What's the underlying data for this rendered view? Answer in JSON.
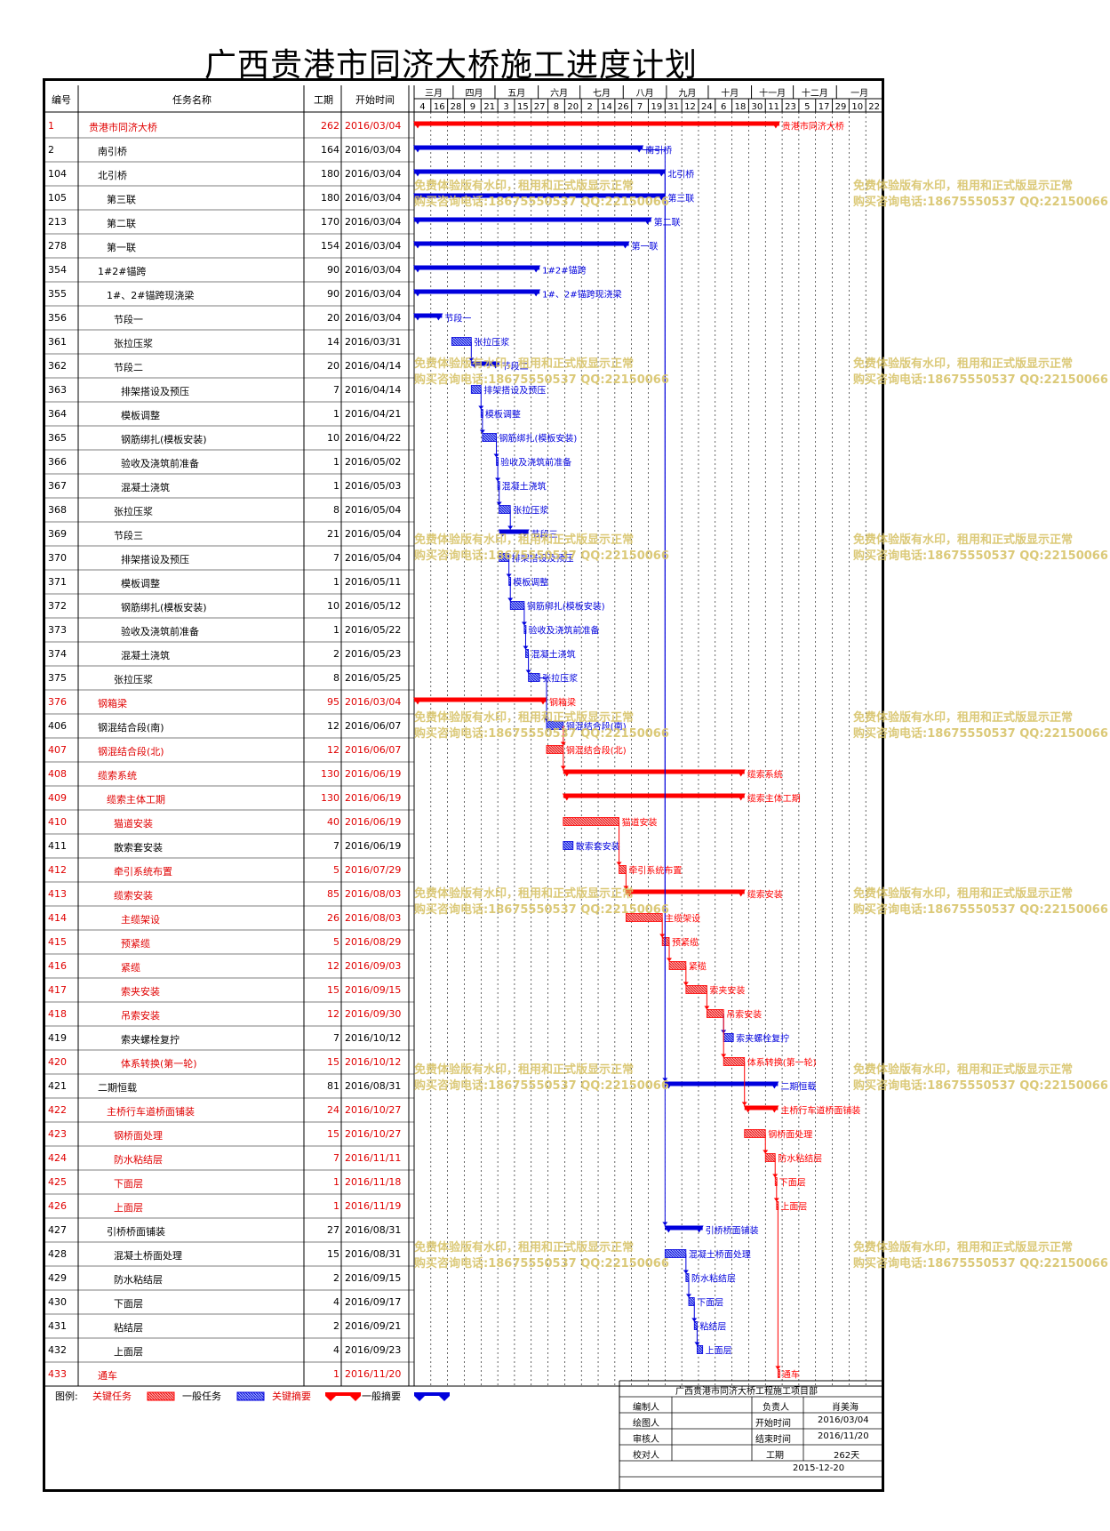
{
  "title": "广西贵港市同济大桥施工进度计划",
  "header": {
    "id": "编号",
    "name": "任务名称",
    "duration": "工期",
    "start": "开始时间"
  },
  "months": [
    "三月",
    "四月",
    "五月",
    "六月",
    "七月",
    "八月",
    "九月",
    "十月",
    "十一月",
    "十二月",
    "一月"
  ],
  "days": [
    "4",
    "16",
    "28",
    "9",
    "21",
    "3",
    "15",
    "27",
    "8",
    "20",
    "2",
    "14",
    "26",
    "7",
    "19",
    "31",
    "12",
    "24",
    "6",
    "18",
    "30",
    "11",
    "23",
    "5",
    "17",
    "29",
    "10",
    "22"
  ],
  "colors": {
    "critical": "#ff0000",
    "normal": "#0000dd",
    "watermark": "#d8c46a"
  },
  "tasks": [
    {
      "id": "1",
      "name": "贵港市同济大桥",
      "dur": "262",
      "start": "2016/03/04",
      "level": 0,
      "crit": true,
      "type": "summary",
      "s": 0,
      "d": 262
    },
    {
      "id": "2",
      "name": "南引桥",
      "dur": "164",
      "start": "2016/03/04",
      "level": 1,
      "crit": false,
      "type": "summary",
      "s": 0,
      "d": 164
    },
    {
      "id": "104",
      "name": "北引桥",
      "dur": "180",
      "start": "2016/03/04",
      "level": 1,
      "crit": false,
      "type": "summary",
      "s": 0,
      "d": 180
    },
    {
      "id": "105",
      "name": "第三联",
      "dur": "180",
      "start": "2016/03/04",
      "level": 2,
      "crit": false,
      "type": "summary",
      "s": 0,
      "d": 180
    },
    {
      "id": "213",
      "name": "第二联",
      "dur": "170",
      "start": "2016/03/04",
      "level": 2,
      "crit": false,
      "type": "summary",
      "s": 0,
      "d": 170
    },
    {
      "id": "278",
      "name": "第一联",
      "dur": "154",
      "start": "2016/03/04",
      "level": 2,
      "crit": false,
      "type": "summary",
      "s": 0,
      "d": 154
    },
    {
      "id": "354",
      "name": "1#2#锚跨",
      "dur": "90",
      "start": "2016/03/04",
      "level": 1,
      "crit": false,
      "type": "summary",
      "s": 0,
      "d": 90
    },
    {
      "id": "355",
      "name": "1#、2#锚跨现浇梁",
      "dur": "90",
      "start": "2016/03/04",
      "level": 2,
      "crit": false,
      "type": "summary",
      "s": 0,
      "d": 90
    },
    {
      "id": "356",
      "name": "节段一",
      "dur": "20",
      "start": "2016/03/04",
      "level": 3,
      "crit": false,
      "type": "summary",
      "s": 0,
      "d": 20
    },
    {
      "id": "361",
      "name": "张拉压浆",
      "dur": "14",
      "start": "2016/03/31",
      "level": 3,
      "crit": false,
      "type": "task",
      "s": 27,
      "d": 14
    },
    {
      "id": "362",
      "name": "节段二",
      "dur": "20",
      "start": "2016/04/14",
      "level": 3,
      "crit": false,
      "type": "summary",
      "s": 41,
      "d": 20
    },
    {
      "id": "363",
      "name": "排架搭设及预压",
      "dur": "7",
      "start": "2016/04/14",
      "level": 4,
      "crit": false,
      "type": "task",
      "s": 41,
      "d": 7
    },
    {
      "id": "364",
      "name": "模板调整",
      "dur": "1",
      "start": "2016/04/21",
      "level": 4,
      "crit": false,
      "type": "task",
      "s": 48,
      "d": 1
    },
    {
      "id": "365",
      "name": "钢筋绑扎(模板安装)",
      "dur": "10",
      "start": "2016/04/22",
      "level": 4,
      "crit": false,
      "type": "task",
      "s": 49,
      "d": 10
    },
    {
      "id": "366",
      "name": "验收及浇筑前准备",
      "dur": "1",
      "start": "2016/05/02",
      "level": 4,
      "crit": false,
      "type": "task",
      "s": 59,
      "d": 1
    },
    {
      "id": "367",
      "name": "混凝土浇筑",
      "dur": "1",
      "start": "2016/05/03",
      "level": 4,
      "crit": false,
      "type": "task",
      "s": 60,
      "d": 1
    },
    {
      "id": "368",
      "name": "张拉压浆",
      "dur": "8",
      "start": "2016/05/04",
      "level": 3,
      "crit": false,
      "type": "task",
      "s": 61,
      "d": 8
    },
    {
      "id": "369",
      "name": "节段三",
      "dur": "21",
      "start": "2016/05/04",
      "level": 3,
      "crit": false,
      "type": "summary",
      "s": 61,
      "d": 21
    },
    {
      "id": "370",
      "name": "排架搭设及预压",
      "dur": "7",
      "start": "2016/05/04",
      "level": 4,
      "crit": false,
      "type": "task",
      "s": 61,
      "d": 7
    },
    {
      "id": "371",
      "name": "模板调整",
      "dur": "1",
      "start": "2016/05/11",
      "level": 4,
      "crit": false,
      "type": "task",
      "s": 68,
      "d": 1
    },
    {
      "id": "372",
      "name": "钢筋绑扎(模板安装)",
      "dur": "10",
      "start": "2016/05/12",
      "level": 4,
      "crit": false,
      "type": "task",
      "s": 69,
      "d": 10
    },
    {
      "id": "373",
      "name": "验收及浇筑前准备",
      "dur": "1",
      "start": "2016/05/22",
      "level": 4,
      "crit": false,
      "type": "task",
      "s": 79,
      "d": 1
    },
    {
      "id": "374",
      "name": "混凝土浇筑",
      "dur": "2",
      "start": "2016/05/23",
      "level": 4,
      "crit": false,
      "type": "task",
      "s": 80,
      "d": 2
    },
    {
      "id": "375",
      "name": "张拉压浆",
      "dur": "8",
      "start": "2016/05/25",
      "level": 3,
      "crit": false,
      "type": "task",
      "s": 82,
      "d": 8
    },
    {
      "id": "376",
      "name": "钢箱梁",
      "dur": "95",
      "start": "2016/03/04",
      "level": 1,
      "crit": true,
      "type": "summary",
      "s": 0,
      "d": 95
    },
    {
      "id": "406",
      "name": "钢混结合段(南)",
      "dur": "12",
      "start": "2016/06/07",
      "level": 1,
      "crit": false,
      "type": "task",
      "s": 95,
      "d": 12
    },
    {
      "id": "407",
      "name": "钢混结合段(北)",
      "dur": "12",
      "start": "2016/06/07",
      "level": 1,
      "crit": true,
      "type": "task",
      "s": 95,
      "d": 12
    },
    {
      "id": "408",
      "name": "缆索系统",
      "dur": "130",
      "start": "2016/06/19",
      "level": 1,
      "crit": true,
      "type": "summary",
      "s": 107,
      "d": 130
    },
    {
      "id": "409",
      "name": "缆索主体工期",
      "dur": "130",
      "start": "2016/06/19",
      "level": 2,
      "crit": true,
      "type": "summary",
      "s": 107,
      "d": 130
    },
    {
      "id": "410",
      "name": "猫道安装",
      "dur": "40",
      "start": "2016/06/19",
      "level": 3,
      "crit": true,
      "type": "task",
      "s": 107,
      "d": 40
    },
    {
      "id": "411",
      "name": "散索套安装",
      "dur": "7",
      "start": "2016/06/19",
      "level": 3,
      "crit": false,
      "type": "task",
      "s": 107,
      "d": 7
    },
    {
      "id": "412",
      "name": "牵引系统布置",
      "dur": "5",
      "start": "2016/07/29",
      "level": 3,
      "crit": true,
      "type": "task",
      "s": 147,
      "d": 5
    },
    {
      "id": "413",
      "name": "缆索安装",
      "dur": "85",
      "start": "2016/08/03",
      "level": 3,
      "crit": true,
      "type": "summary",
      "s": 152,
      "d": 85
    },
    {
      "id": "414",
      "name": "主缆架设",
      "dur": "26",
      "start": "2016/08/03",
      "level": 4,
      "crit": true,
      "type": "task",
      "s": 152,
      "d": 26
    },
    {
      "id": "415",
      "name": "预紧缆",
      "dur": "5",
      "start": "2016/08/29",
      "level": 4,
      "crit": true,
      "type": "task",
      "s": 178,
      "d": 5
    },
    {
      "id": "416",
      "name": "紧缆",
      "dur": "12",
      "start": "2016/09/03",
      "level": 4,
      "crit": true,
      "type": "task",
      "s": 183,
      "d": 12
    },
    {
      "id": "417",
      "name": "索夹安装",
      "dur": "15",
      "start": "2016/09/15",
      "level": 4,
      "crit": true,
      "type": "task",
      "s": 195,
      "d": 15
    },
    {
      "id": "418",
      "name": "吊索安装",
      "dur": "12",
      "start": "2016/09/30",
      "level": 4,
      "crit": true,
      "type": "task",
      "s": 210,
      "d": 12
    },
    {
      "id": "419",
      "name": "索夹螺栓复拧",
      "dur": "7",
      "start": "2016/10/12",
      "level": 4,
      "crit": false,
      "type": "task",
      "s": 222,
      "d": 7
    },
    {
      "id": "420",
      "name": "体系转换(第一轮)",
      "dur": "15",
      "start": "2016/10/12",
      "level": 4,
      "crit": true,
      "type": "task",
      "s": 222,
      "d": 15
    },
    {
      "id": "421",
      "name": "二期恒载",
      "dur": "81",
      "start": "2016/08/31",
      "level": 1,
      "crit": false,
      "type": "summary",
      "s": 180,
      "d": 81
    },
    {
      "id": "422",
      "name": "主桥行车道桥面铺装",
      "dur": "24",
      "start": "2016/10/27",
      "level": 2,
      "crit": true,
      "type": "summary",
      "s": 237,
      "d": 24
    },
    {
      "id": "423",
      "name": "钢桥面处理",
      "dur": "15",
      "start": "2016/10/27",
      "level": 3,
      "crit": true,
      "type": "task",
      "s": 237,
      "d": 15
    },
    {
      "id": "424",
      "name": "防水粘结层",
      "dur": "7",
      "start": "2016/11/11",
      "level": 3,
      "crit": true,
      "type": "task",
      "s": 252,
      "d": 7
    },
    {
      "id": "425",
      "name": "下面层",
      "dur": "1",
      "start": "2016/11/18",
      "level": 3,
      "crit": true,
      "type": "task",
      "s": 259,
      "d": 1
    },
    {
      "id": "426",
      "name": "上面层",
      "dur": "1",
      "start": "2016/11/19",
      "level": 3,
      "crit": true,
      "type": "task",
      "s": 260,
      "d": 1
    },
    {
      "id": "427",
      "name": "引桥桥面铺装",
      "dur": "27",
      "start": "2016/08/31",
      "level": 2,
      "crit": false,
      "type": "summary",
      "s": 180,
      "d": 27
    },
    {
      "id": "428",
      "name": "混凝土桥面处理",
      "dur": "15",
      "start": "2016/08/31",
      "level": 3,
      "crit": false,
      "type": "task",
      "s": 180,
      "d": 15
    },
    {
      "id": "429",
      "name": "防水粘结层",
      "dur": "2",
      "start": "2016/09/15",
      "level": 3,
      "crit": false,
      "type": "task",
      "s": 195,
      "d": 2
    },
    {
      "id": "430",
      "name": "下面层",
      "dur": "4",
      "start": "2016/09/17",
      "level": 3,
      "crit": false,
      "type": "task",
      "s": 197,
      "d": 4
    },
    {
      "id": "431",
      "name": "粘结层",
      "dur": "2",
      "start": "2016/09/21",
      "level": 3,
      "crit": false,
      "type": "task",
      "s": 201,
      "d": 2
    },
    {
      "id": "432",
      "name": "上面层",
      "dur": "4",
      "start": "2016/09/23",
      "level": 3,
      "crit": false,
      "type": "task",
      "s": 203,
      "d": 4
    },
    {
      "id": "433",
      "name": "通车",
      "dur": "1",
      "start": "2016/11/20",
      "level": 1,
      "crit": true,
      "type": "task",
      "s": 261,
      "d": 1
    }
  ],
  "bar_labels": {
    "1": "贵港市同济大桥",
    "2": "南引桥",
    "104": "北引桥",
    "105": "第三联",
    "213": "第二联",
    "278": "第一联",
    "354": "1#2#锚跨",
    "355": "1#、2#锚跨现浇梁",
    "356": "节段一",
    "361": "张拉压浆",
    "362": "节段二",
    "363": "排架搭设及预压",
    "364": "模板调整",
    "365": "钢筋绑扎(模板安装)",
    "366": "验收及浇筑前准备",
    "367": "混凝土浇筑",
    "368": "张拉压浆",
    "369": "节段三",
    "370": "排架搭设及预压",
    "371": "模板调整",
    "372": "钢筋绑扎(模板安装)",
    "373": "验收及浇筑前准备",
    "374": "混凝土浇筑",
    "375": "张拉压浆",
    "376": "钢箱梁",
    "406": "钢混结合段(南)",
    "407": "钢混结合段(北)",
    "408": "缆索系统",
    "409": "缆索主体工期",
    "410": "猫道安装",
    "411": "散索套安装",
    "412": "牵引系统布置",
    "413": "缆索安装",
    "414": "主缆架设",
    "415": "预紧缆",
    "416": "紧缆",
    "417": "索夹安装",
    "418": "吊索安装",
    "419": "索夹螺栓复拧",
    "420": "体系转换(第一轮)",
    "421": "二期恒载",
    "422": "主桥行车道桥面铺装",
    "423": "钢桥面处理",
    "424": "防水粘结层",
    "425": "下面层",
    "426": "上面层",
    "427": "引桥桥面铺装",
    "428": "混凝土桥面处理",
    "429": "防水粘结层",
    "430": "下面层",
    "431": "粘结层",
    "432": "上面层",
    "433": "通车"
  },
  "legend": {
    "label": "图例:",
    "critical_task": "关键任务",
    "normal_task": "一般任务",
    "critical_summary": "关键摘要",
    "normal_summary": "一般摘要"
  },
  "info": {
    "org": "广西贵港市同济大桥工程施工项目部",
    "editor_label": "编制人",
    "editor": "",
    "drawer_label": "绘图人",
    "drawer": "",
    "checker_label": "审核人",
    "checker": "",
    "proof_label": "校对人",
    "proof": "",
    "owner_label": "负责人",
    "owner": "肖美海",
    "start_label": "开始时间",
    "start": "2016/03/04",
    "end_label": "结束时间",
    "end": "2016/11/20",
    "dur_label": "工期",
    "dur": "262天",
    "date": "2015-12-20"
  },
  "watermark": {
    "line1": "免费体验版有水印，租用和正式版显示正常",
    "line2": "购买咨询电话:18675550537 QQ:22150066"
  }
}
